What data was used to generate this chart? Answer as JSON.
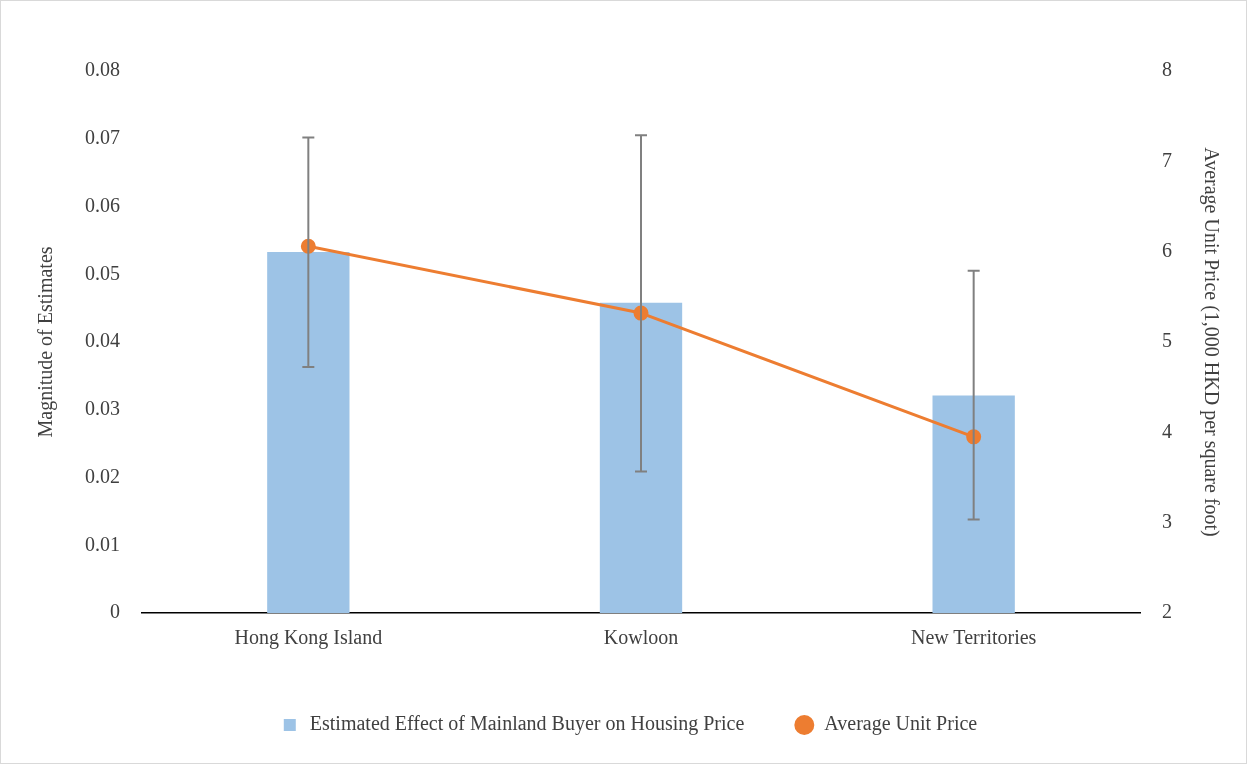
{
  "chart_data": {
    "type": "bar",
    "categories": [
      "Hong Kong Island",
      "Kowloon",
      "New Territories"
    ],
    "ylabel": "Magnitude of Estimates",
    "y2label": "Average Unit Price (1,000 HKD per square foot)",
    "series": [
      {
        "name": "Estimated Effect of Mainland Buyer on Housing Price",
        "color": "#9dc3e6",
        "values": [
          0.0533,
          0.0458,
          0.0321
        ],
        "errors": [
          [
            0.0363,
            0.0702
          ],
          [
            0.0209,
            0.0705
          ],
          [
            0.0138,
            0.0505
          ]
        ]
      },
      {
        "name": "Average Unit Price",
        "type": "line",
        "axis": "y2",
        "color": "#ed7d31",
        "values": [
          6.06,
          5.32,
          3.95
        ],
        "marker": "circle"
      }
    ],
    "ylim": [
      0,
      0.08
    ],
    "yticks": [
      0,
      0.01,
      0.02,
      0.03,
      0.04,
      0.05,
      0.06,
      0.07,
      0.08
    ],
    "y2lim": [
      2,
      8
    ],
    "y2ticks": [
      2,
      3,
      4,
      5,
      6,
      7,
      8
    ],
    "grid": false,
    "legend": "bottom"
  }
}
